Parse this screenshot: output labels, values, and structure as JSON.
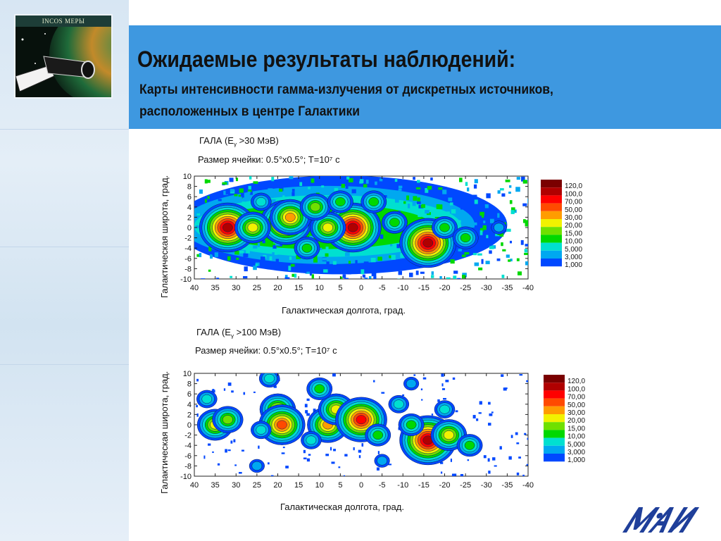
{
  "logo": {
    "caption": "INCOS МЕРЫ"
  },
  "header": {
    "title": "Ожидаемые результаты наблюдений:",
    "subtitle_line1": "Карты интенсивности гамма-излучения от дискретных источников,",
    "subtitle_line2": "расположенных в центре Галактики"
  },
  "colors": {
    "blue_band": "#3e98e0",
    "left_bar": "#dbe8f4"
  },
  "maps": [
    {
      "title1_prefix": "ГАЛА (E",
      "title1_sub": "γ",
      "title1_suffix": " >30 МэВ)",
      "title2": "Размер ячейки: 0.5°x0.5°;   T=10⁷ с",
      "ylabel": "Галактическая широта, град.",
      "xlabel": "Галактическая долгота, град."
    },
    {
      "title1_prefix": "ГАЛА (E",
      "title1_sub": "γ",
      "title1_suffix": " >100 МэВ)",
      "title2": "Размер ячейки: 0.5°x0.5°;  T=10⁷ с",
      "ylabel": "Галактическая широта, град.",
      "xlabel": "Галактическая долгота, град."
    }
  ],
  "x_ticks": [
    "40",
    "35",
    "30",
    "25",
    "20",
    "15",
    "10",
    "5",
    "0",
    "-5",
    "-10",
    "-15",
    "-20",
    "-25",
    "-30",
    "-35",
    "-40"
  ],
  "y_ticks": [
    "10",
    "8",
    "6",
    "4",
    "2",
    "0",
    "-2",
    "-4",
    "-6",
    "-8",
    "-10"
  ],
  "legend": {
    "labels": [
      "120,0",
      "100,0",
      "70,00",
      "50,00",
      "30,00",
      "20,00",
      "15,00",
      "10,00",
      "5,000",
      "3,000",
      "1,000"
    ],
    "colors": [
      "#7a0000",
      "#b00000",
      "#ff0000",
      "#ff4a00",
      "#ff9c00",
      "#f2f200",
      "#6fe000",
      "#00d800",
      "#00e0d0",
      "#00a8f0",
      "#0048ff"
    ]
  },
  "sources_30": [
    {
      "l": 32,
      "b": 0,
      "level": 10
    },
    {
      "l": 18,
      "b": 1,
      "level": 9
    },
    {
      "l": 17,
      "b": 2,
      "level": 7
    },
    {
      "l": 2,
      "b": 0,
      "level": 10
    },
    {
      "l": -16,
      "b": -3,
      "level": 10
    },
    {
      "l": 8,
      "b": 0,
      "level": 6
    },
    {
      "l": 11,
      "b": 4,
      "level": 5
    },
    {
      "l": 26,
      "b": 0,
      "level": 6
    },
    {
      "l": -20,
      "b": 0,
      "level": 4
    },
    {
      "l": -25,
      "b": -2,
      "level": 4
    },
    {
      "l": 5,
      "b": 5,
      "level": 4
    },
    {
      "l": -3,
      "b": 5,
      "level": 4
    },
    {
      "l": -8,
      "b": 1,
      "level": 4
    },
    {
      "l": 13,
      "b": -4,
      "level": 4
    },
    {
      "l": 24,
      "b": 5,
      "level": 3
    },
    {
      "l": -33,
      "b": 0,
      "level": 2
    }
  ],
  "sources_100": [
    {
      "l": 35,
      "b": 0,
      "level": 6
    },
    {
      "l": 32,
      "b": 1,
      "level": 5
    },
    {
      "l": 20,
      "b": 3,
      "level": 6
    },
    {
      "l": 19,
      "b": 0,
      "level": 8
    },
    {
      "l": 8,
      "b": 0,
      "level": 7
    },
    {
      "l": 6,
      "b": 3,
      "level": 6
    },
    {
      "l": 0,
      "b": 1,
      "level": 9
    },
    {
      "l": -16,
      "b": -3,
      "level": 10
    },
    {
      "l": -21,
      "b": -2,
      "level": 6
    },
    {
      "l": -26,
      "b": -4,
      "level": 4
    },
    {
      "l": -12,
      "b": 0,
      "level": 4
    },
    {
      "l": -4,
      "b": -2,
      "level": 4
    },
    {
      "l": 10,
      "b": 7,
      "level": 4
    },
    {
      "l": -9,
      "b": 4,
      "level": 3
    },
    {
      "l": -20,
      "b": 3,
      "level": 3
    },
    {
      "l": 12,
      "b": -3,
      "level": 3
    },
    {
      "l": 24,
      "b": -1,
      "level": 3
    },
    {
      "l": 37,
      "b": 5,
      "level": 3
    },
    {
      "l": 22,
      "b": 9,
      "level": 3
    },
    {
      "l": -12,
      "b": 8,
      "level": 2
    },
    {
      "l": 25,
      "b": -8,
      "level": 2
    },
    {
      "l": -5,
      "b": -7,
      "level": 2
    }
  ]
}
